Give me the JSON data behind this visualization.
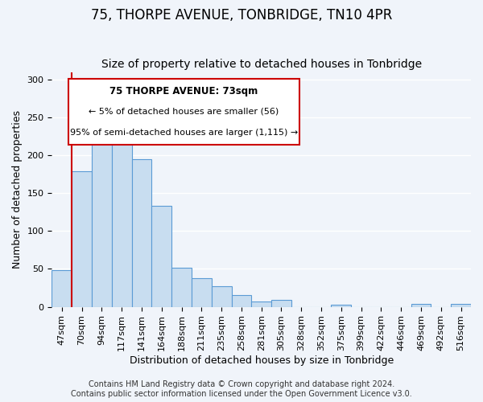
{
  "title": "75, THORPE AVENUE, TONBRIDGE, TN10 4PR",
  "subtitle": "Size of property relative to detached houses in Tonbridge",
  "xlabel": "Distribution of detached houses by size in Tonbridge",
  "ylabel": "Number of detached properties",
  "bar_labels": [
    "47sqm",
    "70sqm",
    "94sqm",
    "117sqm",
    "141sqm",
    "164sqm",
    "188sqm",
    "211sqm",
    "235sqm",
    "258sqm",
    "281sqm",
    "305sqm",
    "328sqm",
    "352sqm",
    "375sqm",
    "399sqm",
    "422sqm",
    "446sqm",
    "469sqm",
    "492sqm",
    "516sqm"
  ],
  "bar_values": [
    48,
    179,
    215,
    250,
    195,
    133,
    52,
    38,
    27,
    16,
    7,
    9,
    0,
    0,
    3,
    0,
    0,
    0,
    4,
    0,
    4
  ],
  "bar_color": "#c8ddf0",
  "bar_edge_color": "#5b9bd5",
  "vline_color": "#cc0000",
  "vline_x_index": 1,
  "annotation_title": "75 THORPE AVENUE: 73sqm",
  "annotation_line1": "← 5% of detached houses are smaller (56)",
  "annotation_line2": "95% of semi-detached houses are larger (1,115) →",
  "annotation_box_color": "#ffffff",
  "annotation_box_edge": "#cc0000",
  "ylim": [
    0,
    310
  ],
  "yticks": [
    0,
    50,
    100,
    150,
    200,
    250,
    300
  ],
  "footer1": "Contains HM Land Registry data © Crown copyright and database right 2024.",
  "footer2": "Contains public sector information licensed under the Open Government Licence v3.0.",
  "background_color": "#f0f4fa",
  "grid_color": "#ffffff",
  "title_fontsize": 12,
  "subtitle_fontsize": 10,
  "axis_label_fontsize": 9,
  "tick_fontsize": 8,
  "footer_fontsize": 7
}
